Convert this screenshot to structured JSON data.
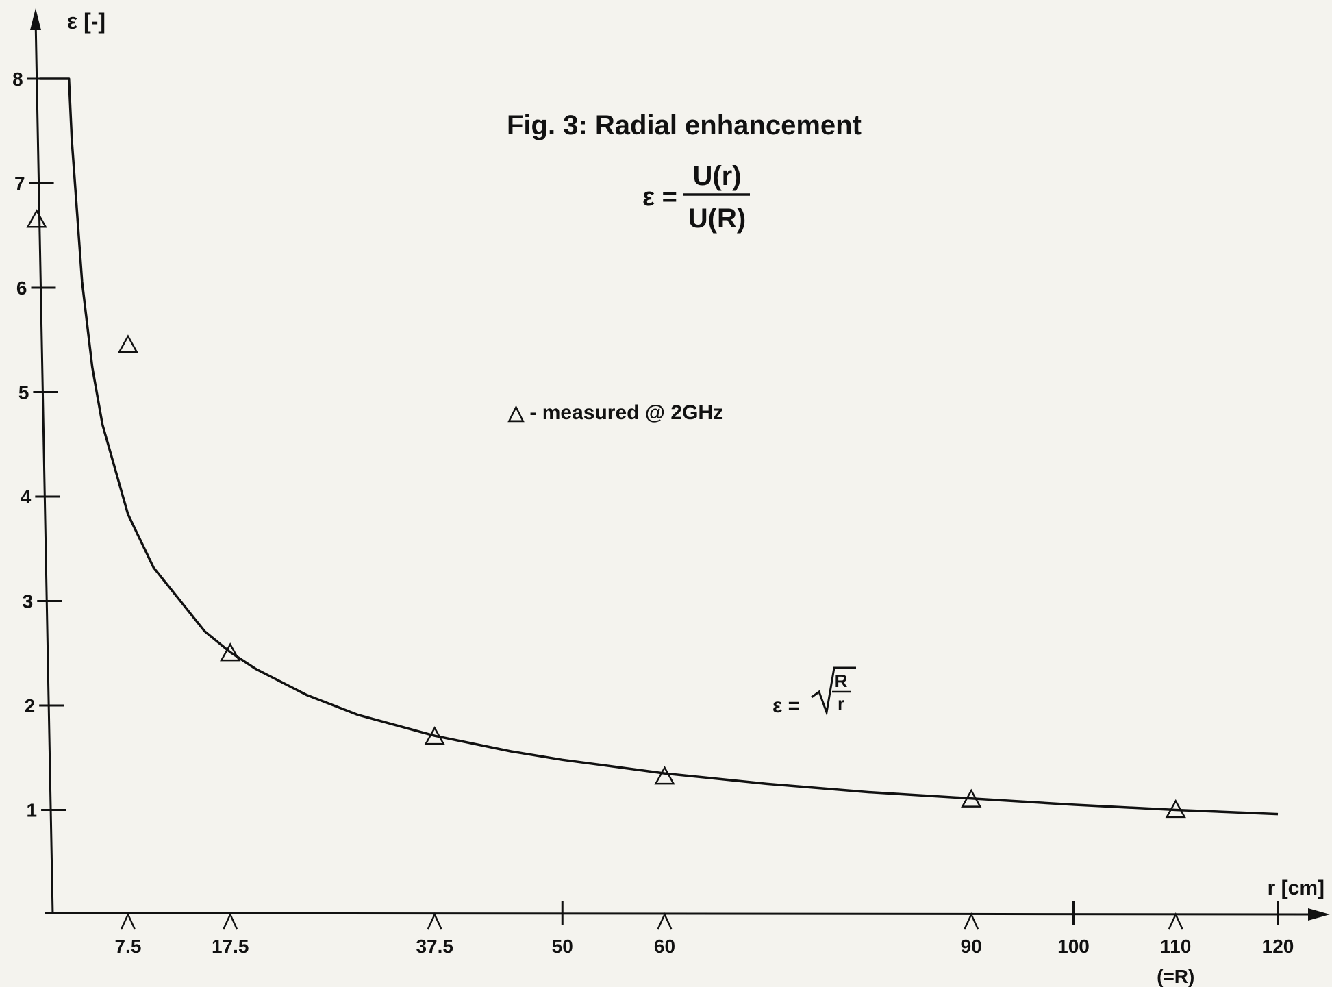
{
  "chart_data": {
    "type": "line",
    "title": "Fig. 3:  Radial  enhancement",
    "formula_lhs": "ε =",
    "formula_num": "U(r)",
    "formula_den": "U(R)",
    "curve_label_lhs": "ε =",
    "curve_label_num": "R",
    "curve_label_den": "r",
    "legend": "△ - measured @ 2GHz",
    "xlabel": "r [cm]",
    "ylabel": "ε [-]",
    "xlim": [
      0,
      120
    ],
    "ylim": [
      0,
      8
    ],
    "yticks": [
      "1",
      "2",
      "3",
      "4",
      "5",
      "6",
      "7",
      "8"
    ],
    "xticks_numbered": [
      "50",
      "100",
      "120"
    ],
    "xticks_measured": [
      "7.5",
      "17.5",
      "37.5",
      "60",
      "90",
      "110"
    ],
    "xtick_note": "(=R)",
    "series": [
      {
        "kind": "measured",
        "x": [
          0,
          7.5,
          17.5,
          37.5,
          60,
          90,
          110
        ],
        "y": [
          6.65,
          5.45,
          2.5,
          1.7,
          1.32,
          1.1,
          1.0
        ]
      },
      {
        "kind": "model",
        "x": [
          0,
          1.72,
          2,
          3,
          4,
          5,
          7.5,
          10,
          15,
          17.5,
          20,
          25,
          30,
          37.5,
          45,
          50,
          60,
          70,
          80,
          90,
          100,
          110,
          120
        ],
        "y": [
          8,
          8,
          7.42,
          6.06,
          5.24,
          4.69,
          3.83,
          3.32,
          2.71,
          2.51,
          2.35,
          2.1,
          1.91,
          1.71,
          1.56,
          1.48,
          1.35,
          1.25,
          1.17,
          1.11,
          1.05,
          1.0,
          0.96
        ]
      }
    ]
  }
}
